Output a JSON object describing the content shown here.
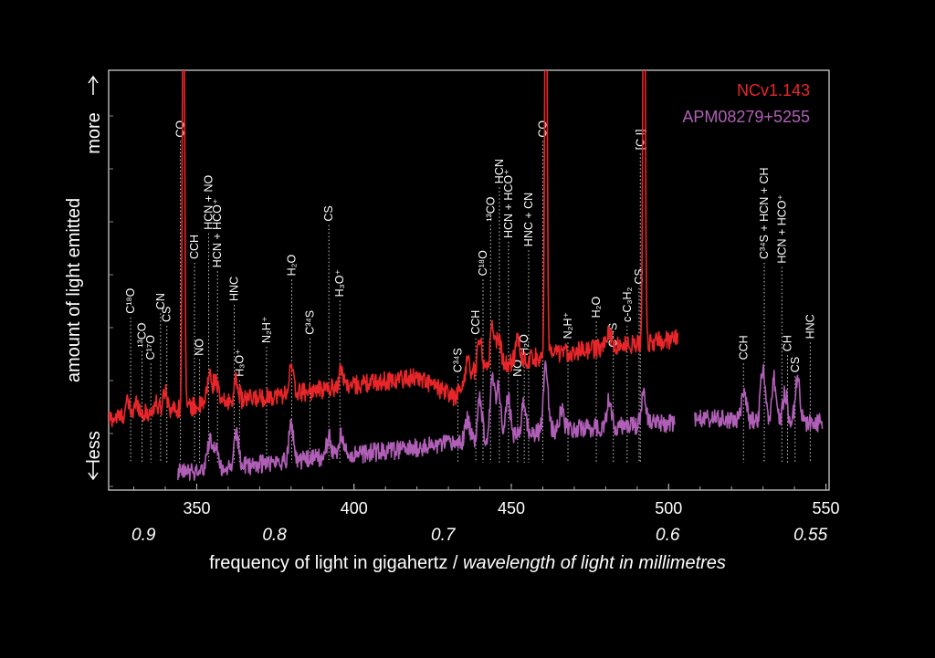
{
  "chart_data": {
    "type": "line",
    "xlabel": "frequency of light in gigahertz",
    "xlabel_secondary": "wavelength of light in millimetres",
    "xlabel_separator": " / ",
    "ylabel": "amount of light emitted",
    "ylabel_more": "more",
    "ylabel_less": "less",
    "xlim": [
      322,
      551
    ],
    "ylim": [
      0,
      1
    ],
    "grid": false,
    "legend_position": "top-right",
    "x_ticks": [
      {
        "value": 350,
        "label": "350"
      },
      {
        "value": 400,
        "label": "400"
      },
      {
        "value": 450,
        "label": "450"
      },
      {
        "value": 500,
        "label": "500"
      },
      {
        "value": 550,
        "label": "550"
      }
    ],
    "wavelength_ticks": [
      {
        "value": 333.1,
        "label": "0.9"
      },
      {
        "value": 374.7,
        "label": "0.8"
      },
      {
        "value": 428.3,
        "label": "0.7"
      },
      {
        "value": 499.7,
        "label": "0.6"
      },
      {
        "value": 545.1,
        "label": "0.55"
      }
    ],
    "series": [
      {
        "name": "NCv1.143",
        "color": "#e8262a",
        "x_range": [
          322,
          503
        ],
        "gap": null,
        "baseline": [
          [
            322,
            0.17
          ],
          [
            350,
            0.2
          ],
          [
            380,
            0.23
          ],
          [
            420,
            0.27
          ],
          [
            432,
            0.22
          ],
          [
            438,
            0.28
          ],
          [
            460,
            0.32
          ],
          [
            480,
            0.34
          ],
          [
            503,
            0.36
          ]
        ],
        "lines": [
          {
            "x": 328,
            "h": 0.03
          },
          {
            "x": 331,
            "h": 0.03
          },
          {
            "x": 337,
            "h": 0.02
          },
          {
            "x": 340,
            "h": 0.05
          },
          {
            "x": 345.8,
            "h": 1.2
          },
          {
            "x": 354,
            "h": 0.07
          },
          {
            "x": 356,
            "h": 0.06
          },
          {
            "x": 362.6,
            "h": 0.05
          },
          {
            "x": 380,
            "h": 0.06
          },
          {
            "x": 396,
            "h": 0.04
          },
          {
            "x": 436,
            "h": 0.05
          },
          {
            "x": 440,
            "h": 0.08
          },
          {
            "x": 444,
            "h": 0.1
          },
          {
            "x": 446,
            "h": 0.07
          },
          {
            "x": 452,
            "h": 0.06
          },
          {
            "x": 461.0,
            "h": 1.2
          },
          {
            "x": 481,
            "h": 0.04
          },
          {
            "x": 492.2,
            "h": 1.2
          }
        ]
      },
      {
        "name": "APM08279+5255",
        "color": "#b05fb6",
        "x_range": [
          344,
          549
        ],
        "gap": [
          502,
          508
        ],
        "baseline": [
          [
            344,
            0.04
          ],
          [
            380,
            0.07
          ],
          [
            420,
            0.1
          ],
          [
            460,
            0.14
          ],
          [
            500,
            0.16
          ],
          [
            508,
            0.17
          ],
          [
            549,
            0.16
          ]
        ],
        "lines": [
          {
            "x": 354,
            "h": 0.07
          },
          {
            "x": 356,
            "h": 0.06
          },
          {
            "x": 362.6,
            "h": 0.08
          },
          {
            "x": 380,
            "h": 0.09
          },
          {
            "x": 392,
            "h": 0.05
          },
          {
            "x": 396,
            "h": 0.05
          },
          {
            "x": 436,
            "h": 0.05
          },
          {
            "x": 440,
            "h": 0.1
          },
          {
            "x": 444,
            "h": 0.15
          },
          {
            "x": 446,
            "h": 0.12
          },
          {
            "x": 449,
            "h": 0.09
          },
          {
            "x": 454,
            "h": 0.07
          },
          {
            "x": 461,
            "h": 0.16
          },
          {
            "x": 466,
            "h": 0.05
          },
          {
            "x": 481,
            "h": 0.06
          },
          {
            "x": 492,
            "h": 0.08
          },
          {
            "x": 524,
            "h": 0.07
          },
          {
            "x": 530,
            "h": 0.13
          },
          {
            "x": 533.5,
            "h": 0.1
          },
          {
            "x": 537,
            "h": 0.07
          },
          {
            "x": 541,
            "h": 0.11
          }
        ]
      }
    ],
    "annotations": [
      {
        "x": 329.0,
        "label": "C¹⁸O",
        "y_top": 0.42
      },
      {
        "x": 332.6,
        "label": "¹³CO",
        "y_top": 0.34
      },
      {
        "x": 335.4,
        "label": "C¹⁷O",
        "y_top": 0.31
      },
      {
        "x": 338.5,
        "label": "CN",
        "y_top": 0.43
      },
      {
        "x": 340.5,
        "label": "CS",
        "y_top": 0.4
      },
      {
        "x": 344.8,
        "label": "CO",
        "y_top": 0.84
      },
      {
        "x": 349.3,
        "label": "CCH",
        "y_top": 0.55
      },
      {
        "x": 350.9,
        "label": "NO",
        "y_top": 0.32
      },
      {
        "x": 353.8,
        "label": "HCN + NO",
        "y_top": 0.62
      },
      {
        "x": 356.6,
        "label": "HCN + HCO⁺",
        "y_top": 0.53
      },
      {
        "x": 361.9,
        "label": "HNC",
        "y_top": 0.45
      },
      {
        "x": 363.6,
        "label": "H₃O⁺",
        "y_top": 0.27
      },
      {
        "x": 372.2,
        "label": "N₂H⁺",
        "y_top": 0.35
      },
      {
        "x": 380.2,
        "label": "H₂O",
        "y_top": 0.51
      },
      {
        "x": 386.0,
        "label": "C³⁴S",
        "y_top": 0.37
      },
      {
        "x": 392.0,
        "label": "CS",
        "y_top": 0.64
      },
      {
        "x": 395.5,
        "label": "H₃O⁺",
        "y_top": 0.46
      },
      {
        "x": 433.0,
        "label": "C³⁴S",
        "y_top": 0.28
      },
      {
        "x": 438.7,
        "label": "CCH",
        "y_top": 0.37
      },
      {
        "x": 441.0,
        "label": "C¹⁸O",
        "y_top": 0.51
      },
      {
        "x": 443.4,
        "label": "¹³CO",
        "y_top": 0.64
      },
      {
        "x": 446.2,
        "label": "HCN",
        "y_top": 0.73
      },
      {
        "x": 449.1,
        "label": "HCN + HCO⁺",
        "y_top": 0.6
      },
      {
        "x": 452.0,
        "label": "NO",
        "y_top": 0.27
      },
      {
        "x": 455.5,
        "label": "HNC + CN",
        "y_top": 0.58
      },
      {
        "x": 454.1,
        "label": "H₂O",
        "y_top": 0.32
      },
      {
        "x": 460.0,
        "label": "CO",
        "y_top": 0.84
      },
      {
        "x": 468.0,
        "label": "N₂H⁺",
        "y_top": 0.36
      },
      {
        "x": 477.0,
        "label": "H₂O",
        "y_top": 0.41
      },
      {
        "x": 482.4,
        "label": "C³⁴S",
        "y_top": 0.34
      },
      {
        "x": 486.8,
        "label": "c-C₃H₂",
        "y_top": 0.4
      },
      {
        "x": 490.6,
        "label": "CS",
        "y_top": 0.49
      },
      {
        "x": 491.0,
        "label": "[C I]",
        "y_top": 0.81
      },
      {
        "x": 523.8,
        "label": "CCH",
        "y_top": 0.31
      },
      {
        "x": 530.4,
        "label": "C³⁴S + HCN + CH",
        "y_top": 0.55
      },
      {
        "x": 536.0,
        "label": "HCN + HCO⁺",
        "y_top": 0.54
      },
      {
        "x": 537.8,
        "label": "CH",
        "y_top": 0.33
      },
      {
        "x": 540.2,
        "label": "CS",
        "y_top": 0.28
      },
      {
        "x": 545.0,
        "label": "HNC",
        "y_top": 0.36
      }
    ]
  }
}
